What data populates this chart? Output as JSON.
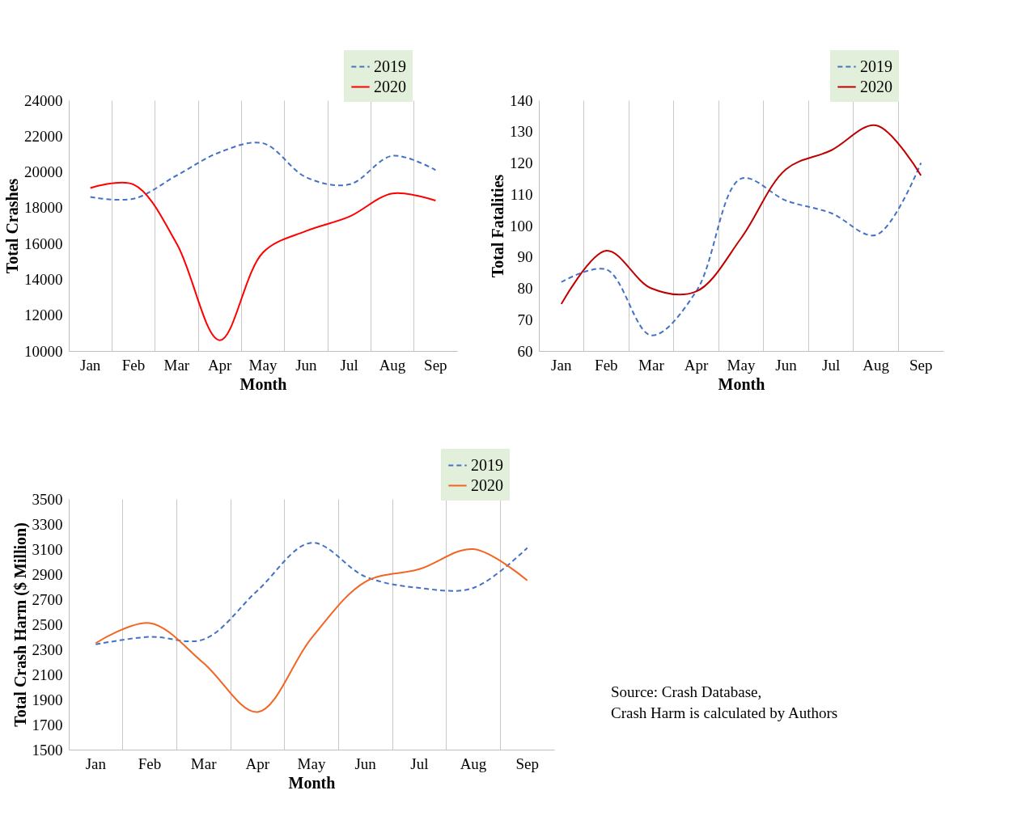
{
  "chart_data": [
    {
      "type": "line",
      "xlabel": "Month",
      "ylabel": "Total Crashes",
      "categories": [
        "Jan",
        "Feb",
        "Mar",
        "Apr",
        "May",
        "Jun",
        "Jul",
        "Aug",
        "Sep"
      ],
      "ylim": [
        10000,
        24000
      ],
      "yticks": [
        10000,
        12000,
        14000,
        16000,
        18000,
        20000,
        22000,
        24000
      ],
      "grid": "x",
      "legend": "top right",
      "series": [
        {
          "name": "2019",
          "color": "#4472c4",
          "line_style": "dashed",
          "values": [
            18600,
            18500,
            19800,
            21100,
            21600,
            19700,
            19300,
            20900,
            20100
          ]
        },
        {
          "name": "2020",
          "color": "#ff0000",
          "line_style": "solid",
          "values": [
            19100,
            19300,
            16000,
            10600,
            15500,
            16700,
            17500,
            18800,
            18400
          ]
        }
      ]
    },
    {
      "type": "line",
      "xlabel": "Month",
      "ylabel": "Total Fatalities",
      "categories": [
        "Jan",
        "Feb",
        "Mar",
        "Apr",
        "May",
        "Jun",
        "Jul",
        "Aug",
        "Sep"
      ],
      "ylim": [
        60,
        140
      ],
      "yticks": [
        60,
        70,
        80,
        90,
        100,
        110,
        120,
        130,
        140
      ],
      "grid": "x",
      "legend": "top right",
      "series": [
        {
          "name": "2019",
          "color": "#4472c4",
          "line_style": "dashed",
          "values": [
            82,
            86,
            65,
            79,
            115,
            108,
            104,
            97,
            120
          ]
        },
        {
          "name": "2020",
          "color": "#c00000",
          "line_style": "solid",
          "values": [
            75,
            92,
            80,
            79,
            96,
            118,
            124,
            132,
            116
          ]
        }
      ]
    },
    {
      "type": "line",
      "xlabel": "Month",
      "ylabel": "Total Crash Harm ($ Million)",
      "categories": [
        "Jan",
        "Feb",
        "Mar",
        "Apr",
        "May",
        "Jun",
        "Jul",
        "Aug",
        "Sep"
      ],
      "ylim": [
        1500,
        3500
      ],
      "yticks": [
        1500,
        1700,
        1900,
        2100,
        2300,
        2500,
        2700,
        2900,
        3100,
        3300,
        3500
      ],
      "grid": "x",
      "legend": "top right",
      "annotations": [
        "Source: Crash Database,",
        "Crash Harm is calculated by Authors"
      ],
      "series": [
        {
          "name": "2019",
          "color": "#4472c4",
          "line_style": "dashed",
          "values": [
            2340,
            2400,
            2380,
            2770,
            3150,
            2880,
            2790,
            2790,
            3110
          ]
        },
        {
          "name": "2020",
          "color": "#f26522",
          "line_style": "solid",
          "values": [
            2350,
            2510,
            2190,
            1800,
            2390,
            2840,
            2940,
            3100,
            2850
          ]
        }
      ]
    }
  ]
}
